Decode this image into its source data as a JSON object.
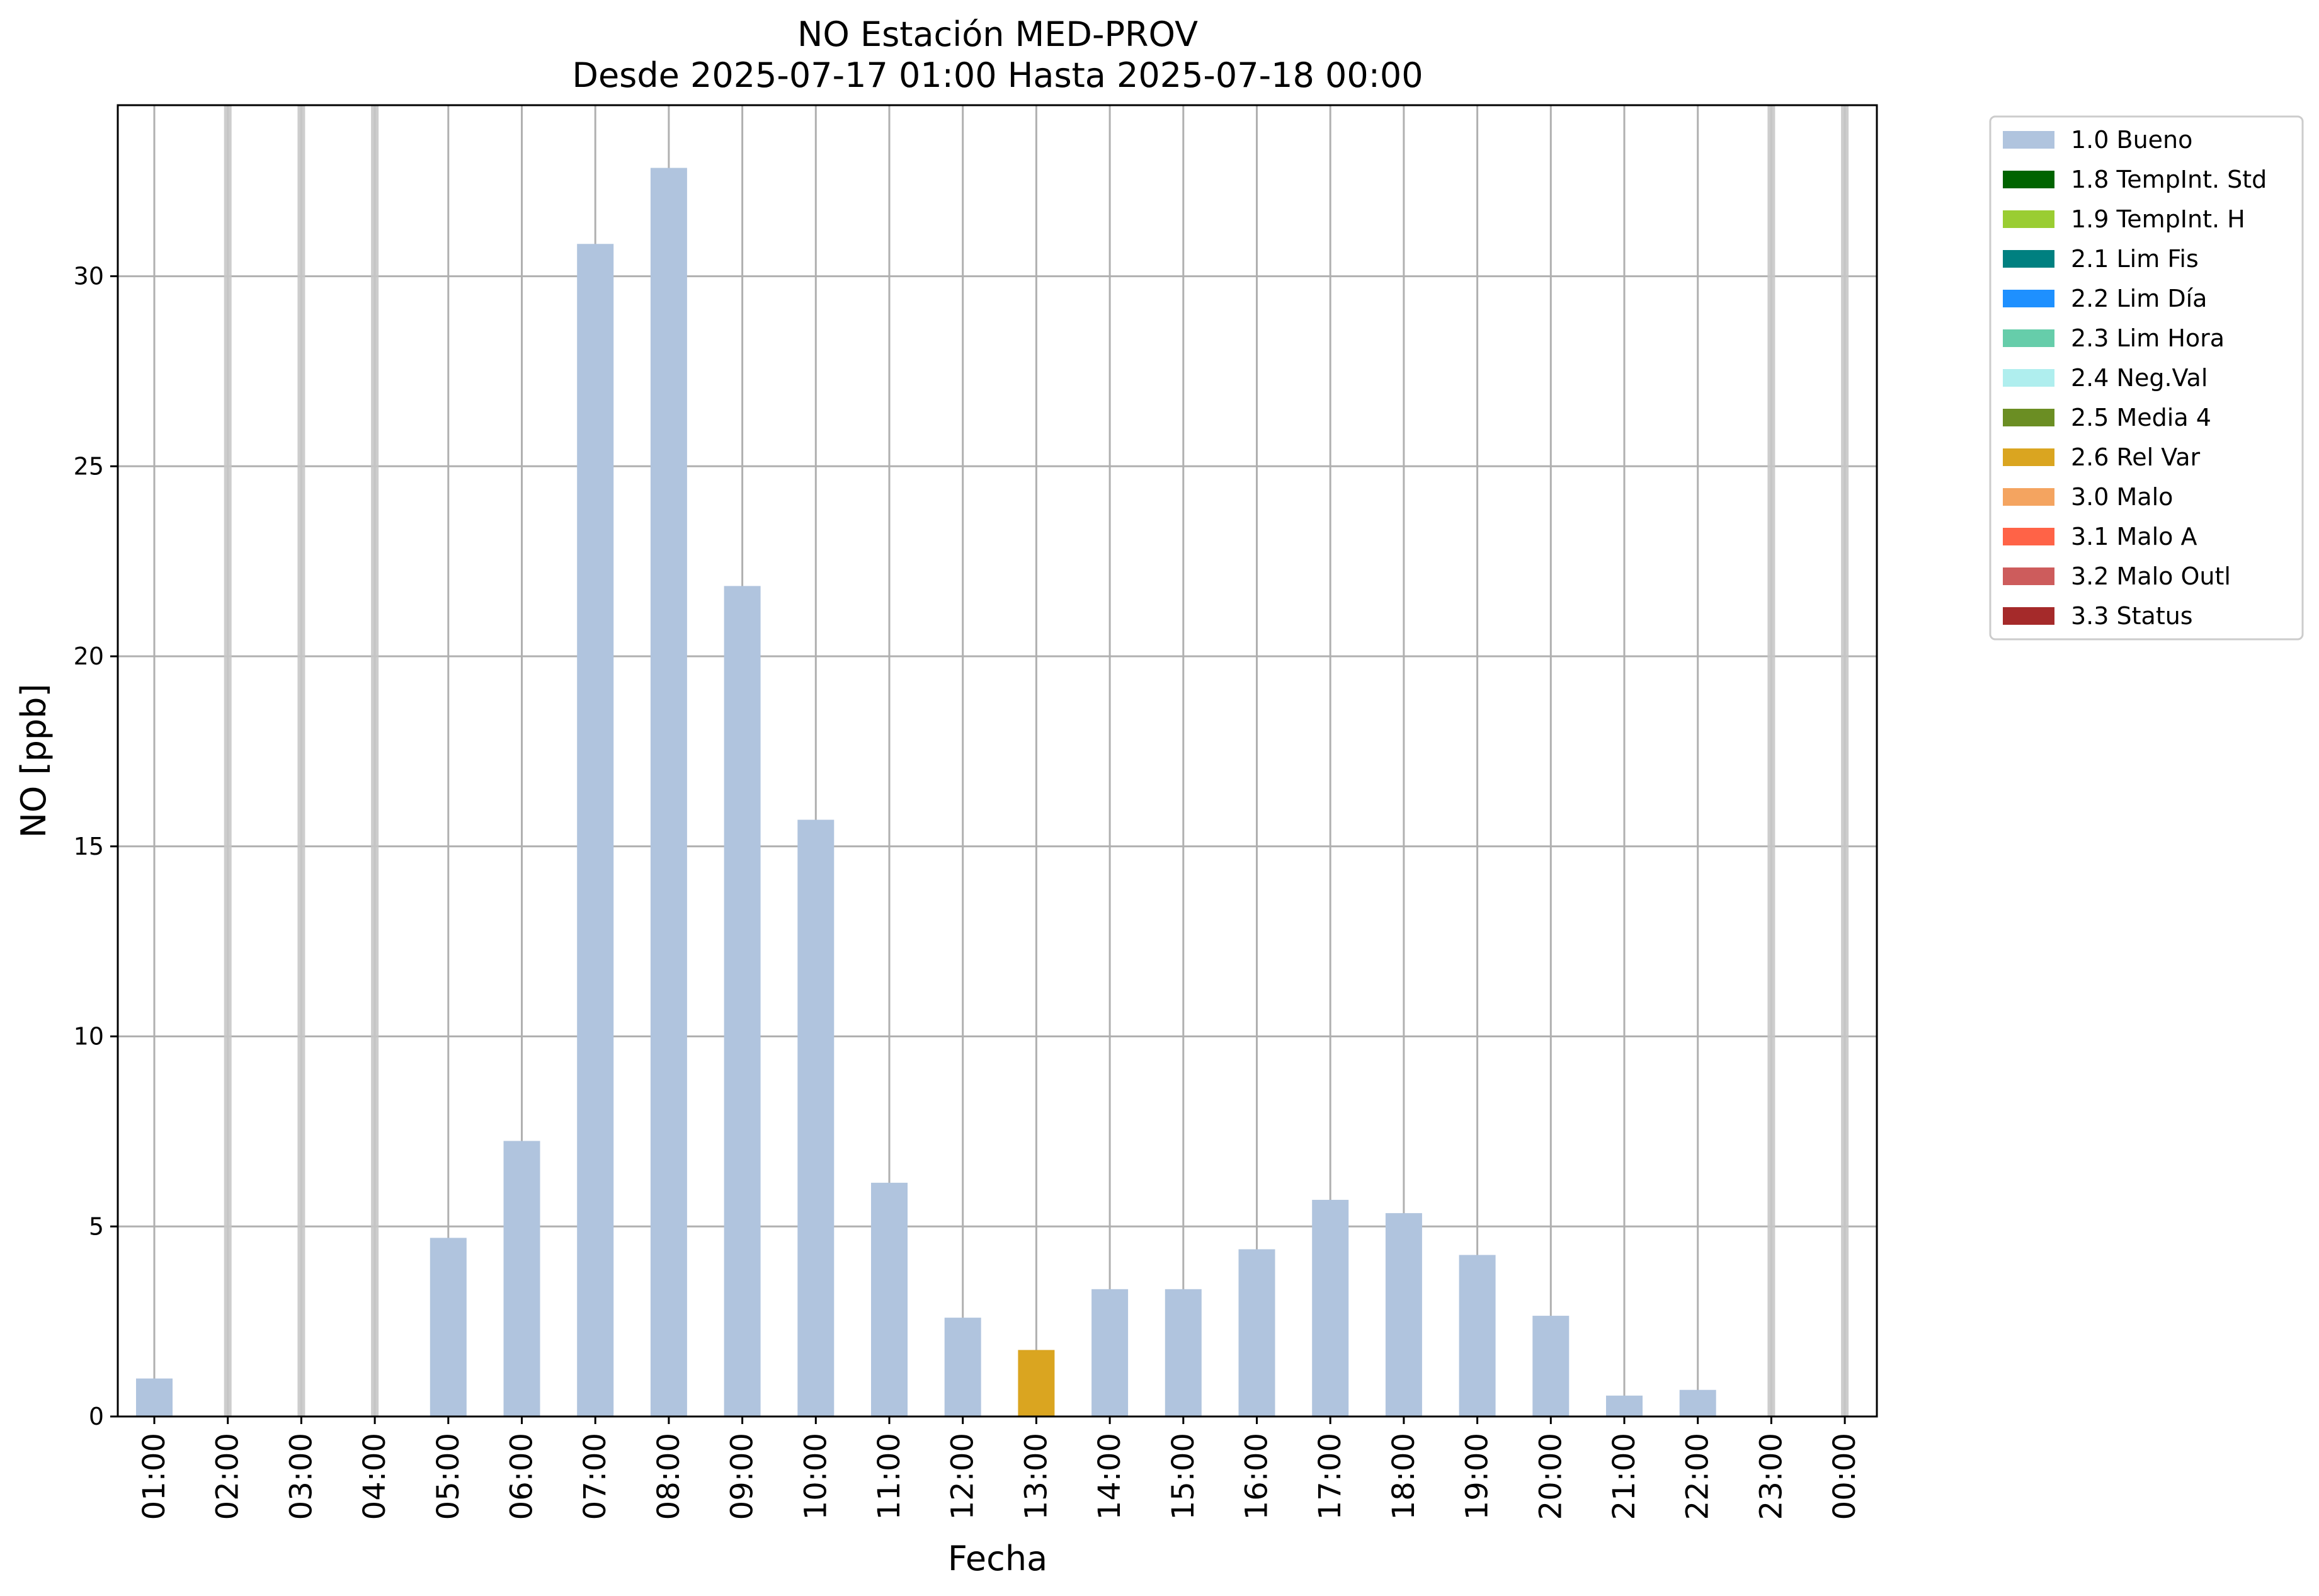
{
  "chart_data": {
    "type": "bar",
    "title": "NO Estación MED-PROV",
    "subtitle": "Desde 2025-07-17 01:00 Hasta 2025-07-18 00:00",
    "xlabel": "Fecha",
    "ylabel": "NO [ppb]",
    "ylim": [
      0,
      34.5
    ],
    "yticks": [
      0,
      5,
      10,
      15,
      20,
      25,
      30
    ],
    "grid": true,
    "legend_position": "outside-top-right",
    "categories": [
      "01:00",
      "02:00",
      "03:00",
      "04:00",
      "05:00",
      "06:00",
      "07:00",
      "08:00",
      "09:00",
      "10:00",
      "11:00",
      "12:00",
      "13:00",
      "14:00",
      "15:00",
      "16:00",
      "17:00",
      "18:00",
      "19:00",
      "20:00",
      "21:00",
      "22:00",
      "23:00",
      "00:00"
    ],
    "values": [
      1.0,
      null,
      null,
      null,
      4.7,
      7.25,
      30.85,
      32.85,
      21.85,
      15.7,
      6.15,
      2.6,
      1.75,
      3.35,
      3.35,
      4.4,
      5.7,
      5.35,
      4.25,
      2.65,
      0.55,
      0.7,
      null,
      null
    ],
    "flags": [
      "1.0 Bueno",
      "missing",
      "missing",
      "missing",
      "1.0 Bueno",
      "1.0 Bueno",
      "1.0 Bueno",
      "1.0 Bueno",
      "1.0 Bueno",
      "1.0 Bueno",
      "1.0 Bueno",
      "1.0 Bueno",
      "2.6 Rel Var",
      "1.0 Bueno",
      "1.0 Bueno",
      "1.0 Bueno",
      "1.0 Bueno",
      "1.0 Bueno",
      "1.0 Bueno",
      "1.0 Bueno",
      "1.0 Bueno",
      "1.0 Bueno",
      "missing",
      "missing"
    ],
    "legend": [
      {
        "label": "1.0 Bueno",
        "color": "#b0c4de"
      },
      {
        "label": "1.8 TempInt. Std",
        "color": "#006400"
      },
      {
        "label": "1.9 TempInt. H",
        "color": "#9acd32"
      },
      {
        "label": "2.1 Lim Fis",
        "color": "#008080"
      },
      {
        "label": "2.2 Lim Día",
        "color": "#1e90ff"
      },
      {
        "label": "2.3 Lim Hora",
        "color": "#66cdaa"
      },
      {
        "label": "2.4 Neg.Val",
        "color": "#afeeee"
      },
      {
        "label": "2.5 Media 4",
        "color": "#6b8e23"
      },
      {
        "label": "2.6 Rel Var",
        "color": "#daa520"
      },
      {
        "label": "3.0 Malo",
        "color": "#f4a460"
      },
      {
        "label": "3.1 Malo A",
        "color": "#ff6347"
      },
      {
        "label": "3.2 Malo Outl",
        "color": "#cd5c5c"
      },
      {
        "label": "3.3 Status",
        "color": "#a52a2a"
      }
    ],
    "missing_marker_color": "#c8c8c8"
  }
}
